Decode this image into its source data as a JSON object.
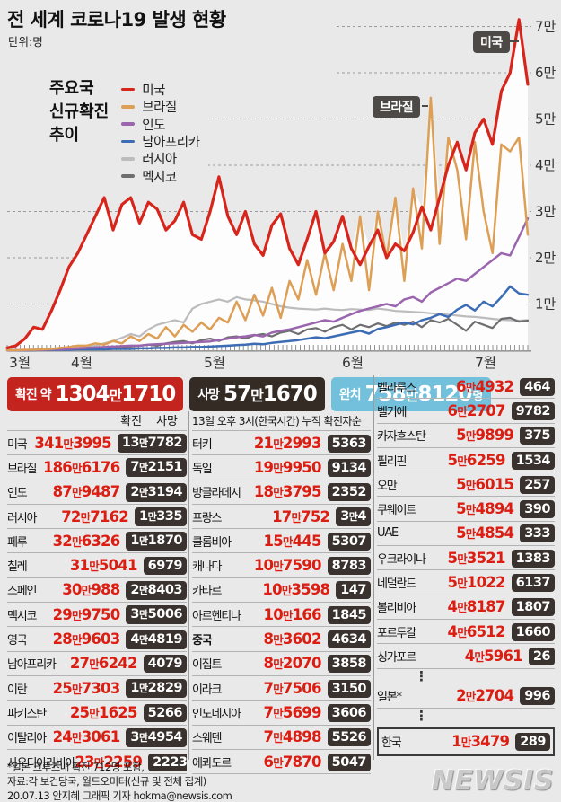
{
  "title": "전 세계 코로나19 발생 현황",
  "unit": "단위:명",
  "legend": {
    "heading": "주요국\n신규확진\n추이",
    "items": [
      {
        "label": "미국",
        "color": "#d8251c"
      },
      {
        "label": "브라질",
        "color": "#dd9f56"
      },
      {
        "label": "인도",
        "color": "#9a65ae"
      },
      {
        "label": "남아프리카",
        "color": "#3c6cb4"
      },
      {
        "label": "러시아",
        "color": "#bcbcbe"
      },
      {
        "label": "멕시코",
        "color": "#6e6e70"
      }
    ]
  },
  "chart_data": {
    "type": "line",
    "title": "주요국 신규확진 추이",
    "x_labels": [
      "3월",
      "4월",
      "5월",
      "6월",
      "7월"
    ],
    "y_ticks": [
      "1만",
      "2만",
      "3만",
      "4만",
      "5만",
      "6만",
      "7만"
    ],
    "ylim": [
      0,
      72000
    ],
    "grid": true,
    "legend_position": "top-left",
    "annotations": [
      {
        "label": "미국"
      },
      {
        "label": "브라질"
      }
    ],
    "series": [
      {
        "name": "미국",
        "color": "#d8251c",
        "width": 3.2,
        "values": [
          500,
          1000,
          2500,
          5000,
          4500,
          8500,
          13000,
          18000,
          21000,
          25000,
          29000,
          33000,
          26000,
          31500,
          33000,
          27500,
          32000,
          30500,
          26000,
          28000,
          32000,
          25000,
          24000,
          30000,
          37500,
          29000,
          25000,
          30000,
          23000,
          20500,
          27000,
          29500,
          22000,
          18500,
          24000,
          30000,
          21000,
          23500,
          29000,
          22000,
          18500,
          22500,
          26000,
          20000,
          23000,
          21500,
          25500,
          31000,
          26000,
          33000,
          40000,
          45000,
          39000,
          47000,
          50000,
          44500,
          56000,
          60000,
          71500,
          57500
        ]
      },
      {
        "name": "브라질",
        "color": "#dd9f56",
        "width": 2.5,
        "values": [
          0,
          0,
          100,
          100,
          200,
          300,
          500,
          700,
          1000,
          1000,
          1500,
          1200,
          2000,
          1500,
          3000,
          2000,
          3500,
          2500,
          5000,
          3000,
          5500,
          4000,
          6000,
          4500,
          7000,
          6000,
          10500,
          6500,
          12000,
          7500,
          13500,
          7000,
          15000,
          11000,
          19500,
          12000,
          21000,
          13000,
          23000,
          15000,
          29000,
          13000,
          30000,
          20000,
          33000,
          15000,
          35000,
          22000,
          54600,
          23000,
          46000,
          39000,
          24000,
          45000,
          30000,
          21000,
          44500,
          43000,
          46000,
          25000
        ]
      },
      {
        "name": "인도",
        "color": "#9a65ae",
        "width": 2.5,
        "values": [
          0,
          0,
          0,
          100,
          100,
          200,
          200,
          300,
          400,
          500,
          600,
          700,
          800,
          900,
          1000,
          1000,
          1200,
          1300,
          1400,
          1500,
          1600,
          1700,
          1800,
          1900,
          2200,
          2500,
          2800,
          3000,
          3300,
          3000,
          3800,
          4200,
          4500,
          5000,
          5500,
          6000,
          6500,
          6200,
          7000,
          7800,
          8500,
          9000,
          9500,
          10000,
          9500,
          11000,
          11500,
          10500,
          12500,
          13500,
          14500,
          15500,
          15000,
          16500,
          18000,
          19500,
          21000,
          20500,
          24500,
          28500
        ]
      },
      {
        "name": "남아프리카",
        "color": "#3c6cb4",
        "width": 2.5,
        "values": [
          0,
          0,
          0,
          0,
          100,
          100,
          100,
          100,
          200,
          200,
          200,
          200,
          300,
          300,
          300,
          400,
          400,
          500,
          500,
          600,
          600,
          700,
          700,
          800,
          900,
          1000,
          1100,
          1200,
          1400,
          1300,
          1600,
          1800,
          2000,
          2200,
          2500,
          2800,
          2600,
          3000,
          3400,
          3800,
          4200,
          3600,
          4600,
          5000,
          5500,
          6000,
          5600,
          6500,
          7000,
          7800,
          7200,
          8800,
          9800,
          8600,
          10500,
          9500,
          11500,
          13800,
          12300,
          12000
        ]
      },
      {
        "name": "러시아",
        "color": "#bcbcbe",
        "width": 2.2,
        "values": [
          0,
          0,
          0,
          100,
          100,
          200,
          300,
          400,
          500,
          700,
          1000,
          1500,
          2000,
          2700,
          3500,
          3000,
          4500,
          5500,
          6000,
          6500,
          6000,
          9000,
          10000,
          10500,
          11000,
          10500,
          11500,
          11000,
          10800,
          10500,
          10000,
          9500,
          9200,
          9000,
          8900,
          8800,
          9000,
          8800,
          8700,
          8900,
          8800,
          8700,
          9000,
          8800,
          8500,
          8400,
          8300,
          8200,
          8000,
          7800,
          7700,
          7500,
          7300,
          7200,
          7000,
          6800,
          6600,
          6500,
          6400,
          6500
        ]
      },
      {
        "name": "멕시코",
        "color": "#6e6e70",
        "width": 2.2,
        "values": [
          0,
          0,
          0,
          0,
          100,
          100,
          200,
          200,
          300,
          300,
          400,
          500,
          400,
          600,
          800,
          1000,
          1200,
          1000,
          1500,
          1800,
          2000,
          1500,
          2200,
          2500,
          2000,
          2800,
          3000,
          2500,
          3200,
          3500,
          3000,
          3800,
          4200,
          3500,
          4500,
          4800,
          4000,
          5000,
          5500,
          4500,
          5500,
          5000,
          5800,
          5200,
          6000,
          5500,
          6200,
          5000,
          6500,
          6000,
          6800,
          5500,
          4200,
          6200,
          5500,
          4800,
          6800,
          7000,
          6200,
          6400
        ]
      }
    ]
  },
  "stats": [
    {
      "label": "확진 약",
      "value": "1304만1710",
      "suffix": "",
      "bg": "#c3241e"
    },
    {
      "label": "사망",
      "value": "57만1670",
      "suffix": "",
      "bg": "#342b25"
    },
    {
      "label": "완치",
      "value": "758만8120",
      "suffix": "명",
      "bg": "#72c0dc"
    }
  ],
  "table": {
    "left": {
      "headers": [
        "확진",
        "사망"
      ],
      "rows": [
        {
          "n": "미국",
          "c": "341만3995",
          "d": "13만7782"
        },
        {
          "n": "브라질",
          "c": "186만6176",
          "d": "7만2151"
        },
        {
          "n": "인도",
          "c": "87만9487",
          "d": "2만3194"
        },
        {
          "n": "러시아",
          "c": "72만7162",
          "d": "1만335"
        },
        {
          "n": "페루",
          "c": "32만6326",
          "d": "1만1870"
        },
        {
          "n": "칠레",
          "c": "31만5041",
          "d": "6979"
        },
        {
          "n": "스페인",
          "c": "30만988",
          "d": "2만8403"
        },
        {
          "n": "멕시코",
          "c": "29만9750",
          "d": "3만5006"
        },
        {
          "n": "영국",
          "c": "28만9603",
          "d": "4만4819"
        },
        {
          "n": "남아프리카",
          "c": "27만6242",
          "d": "4079"
        },
        {
          "n": "이란",
          "c": "25만7303",
          "d": "1만2829"
        },
        {
          "n": "파키스탄",
          "c": "25만1625",
          "d": "5266"
        },
        {
          "n": "이탈리아",
          "c": "24만3061",
          "d": "3만4954"
        },
        {
          "n": "사우디아라비아",
          "c": "23만2259",
          "d": "2223"
        }
      ]
    },
    "mid": {
      "header": "13일 오후 3시(한국시간) 누적 확진자순",
      "rows": [
        {
          "n": "터키",
          "c": "21만2993",
          "d": "5363"
        },
        {
          "n": "독일",
          "c": "19만9950",
          "d": "9134"
        },
        {
          "n": "방글라데시",
          "c": "18만3795",
          "d": "2352"
        },
        {
          "n": "프랑스",
          "c": "17만752",
          "d": "3만4"
        },
        {
          "n": "콜롬비아",
          "c": "15만445",
          "d": "5307"
        },
        {
          "n": "캐나다",
          "c": "10만7590",
          "d": "8783"
        },
        {
          "n": "카타르",
          "c": "10만3598",
          "d": "147"
        },
        {
          "n": "아르헨티나",
          "c": "10만166",
          "d": "1845"
        },
        {
          "n": "중국",
          "c": "8만3602",
          "d": "4634",
          "b": true
        },
        {
          "n": "이집트",
          "c": "8만2070",
          "d": "3858"
        },
        {
          "n": "이라크",
          "c": "7만7506",
          "d": "3150"
        },
        {
          "n": "인도네시아",
          "c": "7만5699",
          "d": "3606"
        },
        {
          "n": "스웨덴",
          "c": "7만4898",
          "d": "5526"
        },
        {
          "n": "에콰도르",
          "c": "6만7870",
          "d": "5047"
        }
      ]
    },
    "right": {
      "dots_char": "⋮",
      "rows": [
        {
          "n": "벨라루스",
          "c": "6만4932",
          "d": "464"
        },
        {
          "n": "벨기에",
          "c": "6만2707",
          "d": "9782"
        },
        {
          "n": "카자흐스탄",
          "c": "5만9899",
          "d": "375"
        },
        {
          "n": "필리핀",
          "c": "5만6259",
          "d": "1534"
        },
        {
          "n": "오만",
          "c": "5만6015",
          "d": "257"
        },
        {
          "n": "쿠웨이트",
          "c": "5만4894",
          "d": "390"
        },
        {
          "n": "UAE",
          "c": "5만4854",
          "d": "333"
        },
        {
          "n": "우크라이나",
          "c": "5만3521",
          "d": "1383"
        },
        {
          "n": "네덜란드",
          "c": "5만1022",
          "d": "6137"
        },
        {
          "n": "볼리비아",
          "c": "4만8187",
          "d": "1807"
        },
        {
          "n": "포르투갈",
          "c": "4만6512",
          "d": "1660"
        },
        {
          "n": "싱가포르",
          "c": "4만5961",
          "d": "26"
        },
        {
          "type": "dots"
        },
        {
          "n": "일본*",
          "c": "2만2704",
          "d": "996"
        },
        {
          "type": "dots"
        },
        {
          "n": "한국",
          "c": "1만3479",
          "d": "289",
          "type": "highlight"
        }
      ]
    }
  },
  "footer": {
    "note1": "*일본 크루즈내 확진 712명 포함,",
    "note2": "자료:각 보건당국, 월드오미터(신규 및 전체 집계)",
    "note3": "20.07.13 안지혜 그래픽 기자 hokma@newsis.com",
    "logo": "NEWSIS"
  }
}
